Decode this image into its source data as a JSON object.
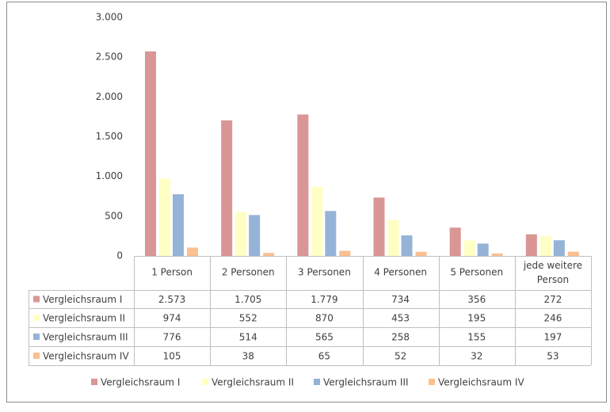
{
  "chart_data": {
    "type": "bar",
    "categories": [
      "1 Person",
      "2 Personen",
      "3 Personen",
      "4 Personen",
      "5 Personen",
      "jede weitere Person"
    ],
    "series": [
      {
        "name": "Vergleichsraum I",
        "color": "#d99694",
        "values": [
          2573,
          1705,
          1779,
          734,
          356,
          272
        ],
        "value_labels": [
          "2.573",
          "1.705",
          "1.779",
          "734",
          "356",
          "272"
        ]
      },
      {
        "name": "Vergleichsraum II",
        "color": "#ffffc4",
        "values": [
          974,
          552,
          870,
          453,
          195,
          246
        ]
      },
      {
        "name": "Vergleichsraum III",
        "color": "#95b3d7",
        "values": [
          776,
          514,
          565,
          258,
          155,
          197
        ]
      },
      {
        "name": "Vergleichsraum IV",
        "color": "#fac090",
        "values": [
          105,
          38,
          65,
          52,
          32,
          53
        ]
      }
    ],
    "ylim": [
      0,
      3000
    ],
    "yticks": [
      0,
      500,
      {
        "value": 1000,
        "label": "1.000"
      },
      {
        "value": 1500,
        "label": "1.500"
      },
      {
        "value": 2000,
        "label": "2.000"
      },
      {
        "value": 2500,
        "label": "2.500"
      },
      {
        "value": 3000,
        "label": "3.000"
      }
    ],
    "grid": false,
    "legend": "bottom"
  }
}
